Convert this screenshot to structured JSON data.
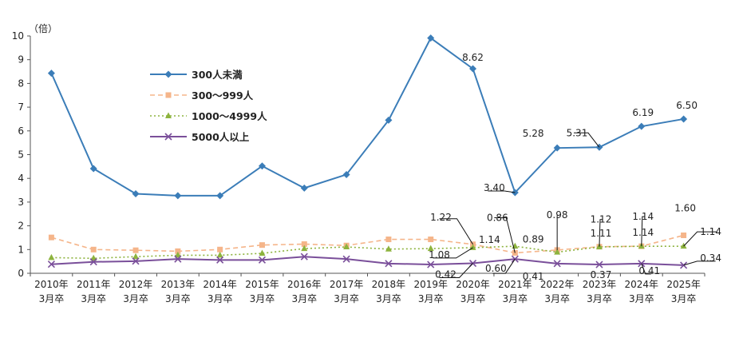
{
  "chart_data": {
    "type": "line",
    "y_unit": "（倍）",
    "ylim": [
      0,
      10
    ],
    "y_ticks": [
      "0",
      "1",
      "2",
      "3",
      "4",
      "5",
      "6",
      "7",
      "8",
      "9",
      "10"
    ],
    "categories": [
      {
        "year": "2010年",
        "sub": "3月卒"
      },
      {
        "year": "2011年",
        "sub": "3月卒"
      },
      {
        "year": "2012年",
        "sub": "3月卒"
      },
      {
        "year": "2013年",
        "sub": "3月卒"
      },
      {
        "year": "2014年",
        "sub": "3月卒"
      },
      {
        "year": "2015年",
        "sub": "3月卒"
      },
      {
        "year": "2016年",
        "sub": "3月卒"
      },
      {
        "year": "2017年",
        "sub": "3月卒"
      },
      {
        "year": "2018年",
        "sub": "3月卒"
      },
      {
        "year": "2019年",
        "sub": "3月卒"
      },
      {
        "year": "2020年",
        "sub": "3月卒"
      },
      {
        "year": "2021年",
        "sub": "3月卒"
      },
      {
        "year": "2022年",
        "sub": "3月卒"
      },
      {
        "year": "2023年",
        "sub": "3月卒"
      },
      {
        "year": "2024年",
        "sub": "3月卒"
      },
      {
        "year": "2025年",
        "sub": "3月卒"
      }
    ],
    "grid": false,
    "legend_position": "upper-left inside plot",
    "series": [
      {
        "name": "300人未満",
        "color": "#3B7DB8",
        "style": "solid",
        "marker": "diamond",
        "values": [
          8.43,
          4.41,
          3.35,
          3.27,
          3.27,
          4.52,
          3.59,
          4.16,
          6.45,
          9.91,
          8.62,
          3.4,
          5.28,
          5.31,
          6.19,
          6.5
        ]
      },
      {
        "name": "300～999人",
        "color": "#F5B58A",
        "style": "dashed",
        "marker": "square",
        "values": [
          1.51,
          1.0,
          0.97,
          0.93,
          1.0,
          1.19,
          1.23,
          1.17,
          1.43,
          1.43,
          1.22,
          0.86,
          0.98,
          1.12,
          1.14,
          1.6
        ]
      },
      {
        "name": "1000～4999人",
        "color": "#8DB33E",
        "style": "dotted",
        "marker": "triangle",
        "values": [
          0.66,
          0.63,
          0.7,
          0.76,
          0.76,
          0.84,
          1.04,
          1.11,
          1.02,
          1.04,
          1.08,
          1.14,
          0.89,
          1.11,
          1.14,
          1.14
        ]
      },
      {
        "name": "5000人以上",
        "color": "#7A4F9A",
        "style": "solid",
        "marker": "x",
        "values": [
          0.38,
          0.48,
          0.51,
          0.6,
          0.56,
          0.56,
          0.7,
          0.6,
          0.41,
          0.37,
          0.42,
          0.6,
          0.41,
          0.37,
          0.41,
          0.34
        ]
      }
    ],
    "annotations": [
      {
        "text": "8.62",
        "series": 0,
        "index": 10
      },
      {
        "text": "3.40",
        "series": 0,
        "index": 11
      },
      {
        "text": "5.28",
        "series": 0,
        "index": 12
      },
      {
        "text": "5.31",
        "series": 0,
        "index": 13
      },
      {
        "text": "6.19",
        "series": 0,
        "index": 14
      },
      {
        "text": "6.50",
        "series": 0,
        "index": 15
      },
      {
        "text": "1.22",
        "series": 1,
        "index": 10
      },
      {
        "text": "0.86",
        "series": 1,
        "index": 11
      },
      {
        "text": "0.98",
        "series": 1,
        "index": 12
      },
      {
        "text": "1.12",
        "series": 1,
        "index": 13
      },
      {
        "text": "1.14",
        "series": 1,
        "index": 14
      },
      {
        "text": "1.60",
        "series": 1,
        "index": 15
      },
      {
        "text": "1.08",
        "series": 2,
        "index": 10
      },
      {
        "text": "1.14",
        "series": 2,
        "index": 11
      },
      {
        "text": "0.89",
        "series": 2,
        "index": 12
      },
      {
        "text": "1.11",
        "series": 2,
        "index": 13
      },
      {
        "text": "1.14",
        "series": 2,
        "index": 14
      },
      {
        "text": "1.14",
        "series": 2,
        "index": 15
      },
      {
        "text": "0.42",
        "series": 3,
        "index": 10
      },
      {
        "text": "0.60",
        "series": 3,
        "index": 11
      },
      {
        "text": "0.41",
        "series": 3,
        "index": 12
      },
      {
        "text": "0.37",
        "series": 3,
        "index": 13
      },
      {
        "text": "0.41",
        "series": 3,
        "index": 14
      },
      {
        "text": "0.34",
        "series": 3,
        "index": 15
      }
    ]
  }
}
